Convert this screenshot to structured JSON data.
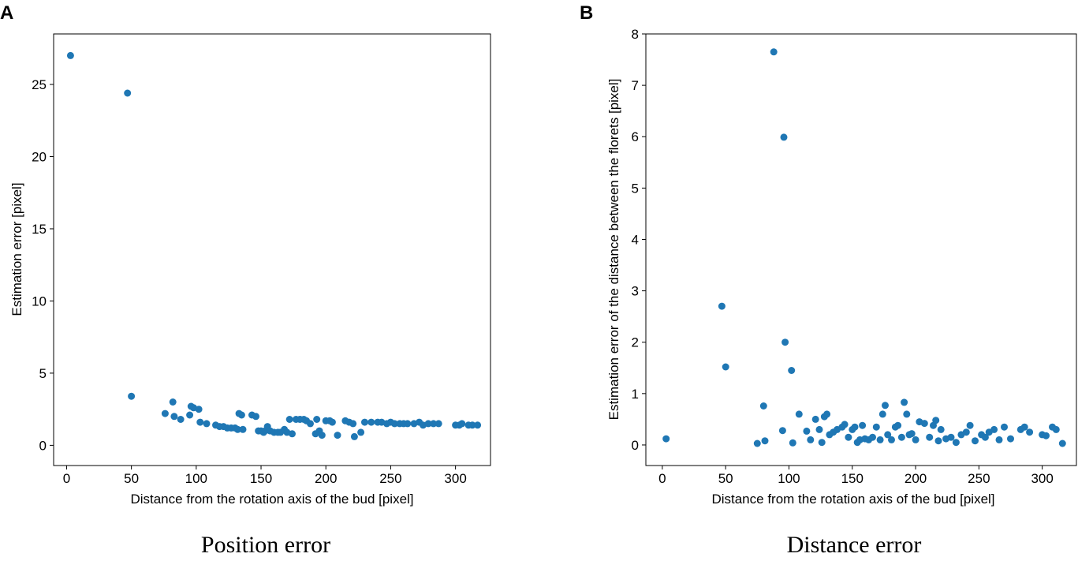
{
  "chart_data": [
    {
      "type": "scatter",
      "panel_label": "A",
      "caption": "Position error",
      "xlabel": "Distance from the rotation axis of the bud [pixel]",
      "ylabel": "Estimation error [pixel]",
      "xlim": [
        -10,
        327
      ],
      "ylim": [
        -1.4,
        28.5
      ],
      "xticks": [
        0,
        50,
        100,
        150,
        200,
        250,
        300
      ],
      "yticks": [
        0,
        5,
        10,
        15,
        20,
        25
      ],
      "color": "#1f77b4",
      "points": [
        [
          3,
          27.0
        ],
        [
          47,
          24.4
        ],
        [
          50,
          3.4
        ],
        [
          76,
          2.2
        ],
        [
          82,
          3.0
        ],
        [
          83,
          2.0
        ],
        [
          88,
          1.8
        ],
        [
          95,
          2.1
        ],
        [
          96,
          2.7
        ],
        [
          98,
          2.6
        ],
        [
          102,
          2.5
        ],
        [
          103,
          1.6
        ],
        [
          108,
          1.5
        ],
        [
          115,
          1.4
        ],
        [
          118,
          1.3
        ],
        [
          121,
          1.3
        ],
        [
          124,
          1.2
        ],
        [
          127,
          1.2
        ],
        [
          130,
          1.2
        ],
        [
          132,
          1.1
        ],
        [
          133,
          2.2
        ],
        [
          135,
          2.1
        ],
        [
          136,
          1.1
        ],
        [
          143,
          2.1
        ],
        [
          146,
          2.0
        ],
        [
          148,
          1.0
        ],
        [
          150,
          1.0
        ],
        [
          152,
          0.9
        ],
        [
          153,
          1.0
        ],
        [
          155,
          1.3
        ],
        [
          157,
          1.0
        ],
        [
          160,
          0.9
        ],
        [
          163,
          0.9
        ],
        [
          165,
          0.9
        ],
        [
          168,
          1.1
        ],
        [
          170,
          0.9
        ],
        [
          172,
          1.8
        ],
        [
          174,
          0.8
        ],
        [
          177,
          1.8
        ],
        [
          180,
          1.8
        ],
        [
          183,
          1.8
        ],
        [
          185,
          1.7
        ],
        [
          188,
          1.5
        ],
        [
          192,
          0.8
        ],
        [
          193,
          1.8
        ],
        [
          195,
          1.0
        ],
        [
          197,
          0.7
        ],
        [
          200,
          1.7
        ],
        [
          203,
          1.7
        ],
        [
          205,
          1.6
        ],
        [
          209,
          0.7
        ],
        [
          215,
          1.7
        ],
        [
          218,
          1.6
        ],
        [
          221,
          1.5
        ],
        [
          222,
          0.6
        ],
        [
          227,
          0.9
        ],
        [
          230,
          1.6
        ],
        [
          235,
          1.6
        ],
        [
          240,
          1.6
        ],
        [
          243,
          1.6
        ],
        [
          247,
          1.5
        ],
        [
          250,
          1.6
        ],
        [
          253,
          1.5
        ],
        [
          257,
          1.5
        ],
        [
          260,
          1.5
        ],
        [
          263,
          1.5
        ],
        [
          268,
          1.5
        ],
        [
          272,
          1.6
        ],
        [
          275,
          1.4
        ],
        [
          279,
          1.5
        ],
        [
          283,
          1.5
        ],
        [
          287,
          1.5
        ],
        [
          300,
          1.4
        ],
        [
          303,
          1.4
        ],
        [
          305,
          1.5
        ],
        [
          310,
          1.4
        ],
        [
          313,
          1.4
        ],
        [
          317,
          1.4
        ]
      ]
    },
    {
      "type": "scatter",
      "panel_label": "B",
      "caption": "Distance error",
      "xlabel": "Distance from the rotation axis of the bud [pixel]",
      "ylabel": "Estimation error of the distance between the florets [pixel]",
      "xlim": [
        -13,
        327
      ],
      "ylim": [
        -0.4,
        8.0
      ],
      "xticks": [
        0,
        50,
        100,
        150,
        200,
        250,
        300
      ],
      "yticks": [
        0,
        1,
        2,
        3,
        4,
        5,
        6,
        7,
        8
      ],
      "color": "#1f77b4",
      "points": [
        [
          3,
          0.12
        ],
        [
          47,
          2.7
        ],
        [
          50,
          1.52
        ],
        [
          75,
          0.03
        ],
        [
          80,
          0.76
        ],
        [
          81,
          0.08
        ],
        [
          88,
          7.65
        ],
        [
          95,
          0.28
        ],
        [
          96,
          5.99
        ],
        [
          97,
          2.0
        ],
        [
          102,
          1.45
        ],
        [
          103,
          0.04
        ],
        [
          108,
          0.6
        ],
        [
          114,
          0.27
        ],
        [
          117,
          0.1
        ],
        [
          121,
          0.5
        ],
        [
          124,
          0.3
        ],
        [
          126,
          0.05
        ],
        [
          128,
          0.55
        ],
        [
          130,
          0.6
        ],
        [
          132,
          0.2
        ],
        [
          135,
          0.25
        ],
        [
          138,
          0.3
        ],
        [
          142,
          0.35
        ],
        [
          144,
          0.4
        ],
        [
          147,
          0.15
        ],
        [
          150,
          0.3
        ],
        [
          152,
          0.35
        ],
        [
          154,
          0.05
        ],
        [
          156,
          0.1
        ],
        [
          158,
          0.38
        ],
        [
          160,
          0.12
        ],
        [
          163,
          0.1
        ],
        [
          166,
          0.15
        ],
        [
          169,
          0.35
        ],
        [
          172,
          0.1
        ],
        [
          174,
          0.6
        ],
        [
          176,
          0.77
        ],
        [
          178,
          0.2
        ],
        [
          181,
          0.1
        ],
        [
          184,
          0.35
        ],
        [
          186,
          0.38
        ],
        [
          189,
          0.15
        ],
        [
          191,
          0.83
        ],
        [
          193,
          0.6
        ],
        [
          195,
          0.2
        ],
        [
          197,
          0.22
        ],
        [
          200,
          0.1
        ],
        [
          203,
          0.45
        ],
        [
          207,
          0.42
        ],
        [
          211,
          0.15
        ],
        [
          214,
          0.38
        ],
        [
          216,
          0.48
        ],
        [
          218,
          0.08
        ],
        [
          220,
          0.3
        ],
        [
          224,
          0.12
        ],
        [
          228,
          0.15
        ],
        [
          232,
          0.05
        ],
        [
          236,
          0.2
        ],
        [
          240,
          0.25
        ],
        [
          243,
          0.38
        ],
        [
          247,
          0.08
        ],
        [
          252,
          0.2
        ],
        [
          255,
          0.15
        ],
        [
          258,
          0.25
        ],
        [
          262,
          0.3
        ],
        [
          266,
          0.1
        ],
        [
          270,
          0.35
        ],
        [
          275,
          0.12
        ],
        [
          283,
          0.3
        ],
        [
          286,
          0.35
        ],
        [
          290,
          0.25
        ],
        [
          300,
          0.2
        ],
        [
          303,
          0.18
        ],
        [
          308,
          0.35
        ],
        [
          311,
          0.3
        ],
        [
          316,
          0.03
        ]
      ]
    }
  ]
}
